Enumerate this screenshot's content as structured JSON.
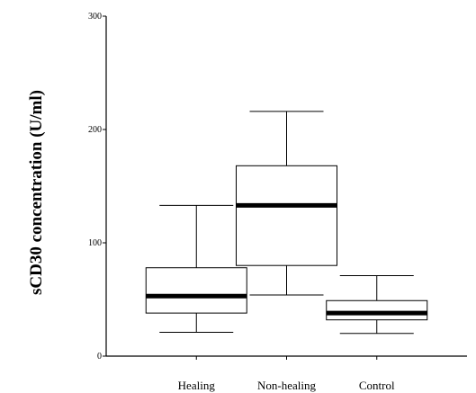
{
  "chart_data": {
    "type": "box",
    "title": "",
    "xlabel": "",
    "ylabel": "sCD30 concentration (U/ml)",
    "ylim": [
      0,
      300
    ],
    "y_ticks": [
      0,
      100,
      200,
      300
    ],
    "grid": false,
    "legend": "none",
    "categories": [
      "Healing",
      "Non-healing",
      "Control"
    ],
    "boxes": [
      {
        "category": "Healing",
        "min": 21,
        "q1": 38,
        "median": 53,
        "q3": 78,
        "max": 133
      },
      {
        "category": "Non-healing",
        "min": 54,
        "q1": 80,
        "median": 133,
        "q3": 168,
        "max": 216
      },
      {
        "category": "Control",
        "min": 20,
        "q1": 32,
        "median": 38,
        "q3": 49,
        "max": 71
      }
    ],
    "colors": {
      "box_fill": "#ffffff",
      "stroke": "#000000",
      "median": "#000000"
    }
  }
}
